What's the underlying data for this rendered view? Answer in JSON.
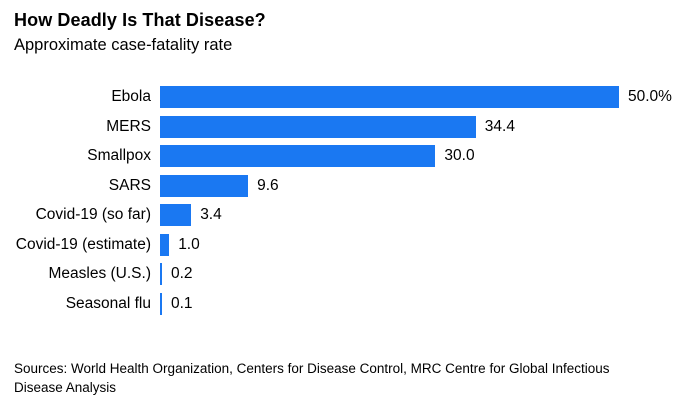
{
  "header": {
    "title": "How Deadly Is That Disease?",
    "subtitle": "Approximate case-fatality rate"
  },
  "chart_data": {
    "type": "bar",
    "orientation": "horizontal",
    "title": "How Deadly Is That Disease?",
    "subtitle": "Approximate case-fatality rate",
    "categories": [
      "Ebola",
      "MERS",
      "Smallpox",
      "SARS",
      "Covid-19 (so far)",
      "Covid-19 (estimate)",
      "Measles (U.S.)",
      "Seasonal flu"
    ],
    "values": [
      50.0,
      34.4,
      30.0,
      9.6,
      3.4,
      1.0,
      0.2,
      0.1
    ],
    "value_labels": [
      "50.0%",
      "34.4",
      "30.0",
      "9.6",
      "3.4",
      "1.0",
      "0.2",
      "0.1"
    ],
    "xlabel": "",
    "ylabel": "",
    "xlim": [
      0,
      50
    ],
    "grid": false,
    "legend_position": "none",
    "bar_color": "#1a78f2",
    "value_label_position": "outside-end"
  },
  "footer": {
    "sources": "Sources: World Health Organization, Centers for Disease Control, MRC Centre for Global Infectious Disease Analysis"
  }
}
